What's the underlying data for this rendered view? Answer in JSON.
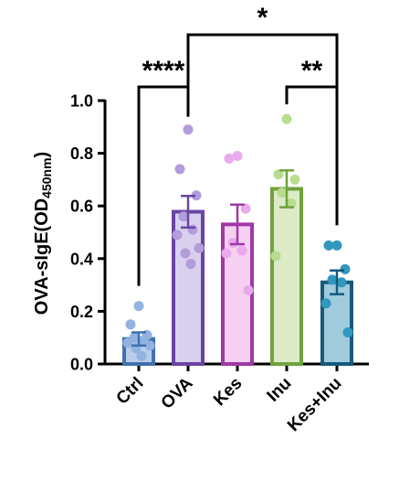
{
  "chart_data": {
    "type": "bar",
    "ylabel_main": "OVA-sIgE(OD",
    "ylabel_sub": "450nm",
    "ylabel_close": ")",
    "ylim": [
      0,
      1.0
    ],
    "yticks": [
      "0.0",
      "0.2",
      "0.4",
      "0.6",
      "0.8",
      "1.0"
    ],
    "tick_values": [
      0,
      0.2,
      0.4,
      0.6,
      0.8,
      1.0
    ],
    "categories": [
      "Ctrl",
      "OVA",
      "Kes",
      "Inu",
      "Kes+Inu"
    ],
    "values": [
      0.095,
      0.578,
      0.53,
      0.665,
      0.31
    ],
    "errors": [
      0.025,
      0.06,
      0.075,
      0.07,
      0.045
    ],
    "points": [
      [
        0.22,
        0.15,
        0.11,
        0.1,
        0.09,
        0.08,
        0.07,
        0.06,
        0.03
      ],
      [
        0.89,
        0.74,
        0.64,
        0.56,
        0.51,
        0.49,
        0.44,
        0.42,
        0.38
      ],
      [
        0.79,
        0.78,
        0.59,
        0.46,
        0.43,
        0.42,
        0.28
      ],
      [
        0.93,
        0.72,
        0.7,
        0.65,
        0.61,
        0.41
      ],
      [
        0.45,
        0.45,
        0.36,
        0.32,
        0.31,
        0.23,
        0.12
      ]
    ],
    "colors": {
      "bar_fill": [
        "#b9cdea",
        "#d8d0ee",
        "#f5d0f1",
        "#dcebc6",
        "#9fcbdc"
      ],
      "bar_edge": [
        "#4170ad",
        "#6a45a2",
        "#a038a8",
        "#6ea33b",
        "#155a7c"
      ],
      "point": [
        "#92b3e2",
        "#b29cda",
        "#eaa9ec",
        "#b9dc8e",
        "#3198be"
      ]
    },
    "significance": [
      {
        "from": 0,
        "to": 1,
        "label": "****"
      },
      {
        "from": 3,
        "to": 4,
        "label": "**"
      },
      {
        "from": 1,
        "to": 4,
        "label": "*"
      }
    ]
  }
}
